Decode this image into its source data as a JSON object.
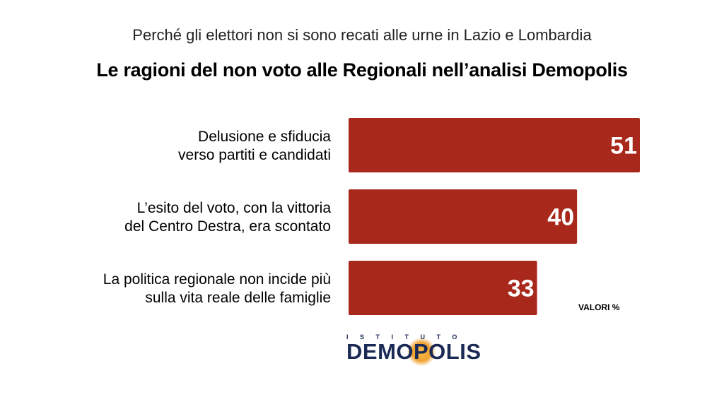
{
  "header": {
    "subtitle": "Perché gli elettori non si sono recati alle urne in Lazio e Lombardia",
    "title": "Le ragioni del non voto alle Regionali nell’analisi Demopolis"
  },
  "chart_data": {
    "type": "bar",
    "orientation": "horizontal",
    "categories": [
      [
        "Delusione e sfiducia",
        "verso partiti e candidati"
      ],
      [
        "L’esito  del voto, con la vittoria",
        "del Centro Destra, era scontato"
      ],
      [
        "La politica regionale non incide più",
        "sulla vita reale delle famiglie"
      ]
    ],
    "values": [
      51,
      40,
      33
    ],
    "xlim": [
      0,
      51
    ],
    "bar_color": "#a8291c",
    "grid": false,
    "unit_note": "VALORI %"
  },
  "logo": {
    "top_text": "ISTITUTO",
    "main_text": "DEMOPOLIS",
    "color": "#1a2a55",
    "accent": "#f0a030"
  }
}
